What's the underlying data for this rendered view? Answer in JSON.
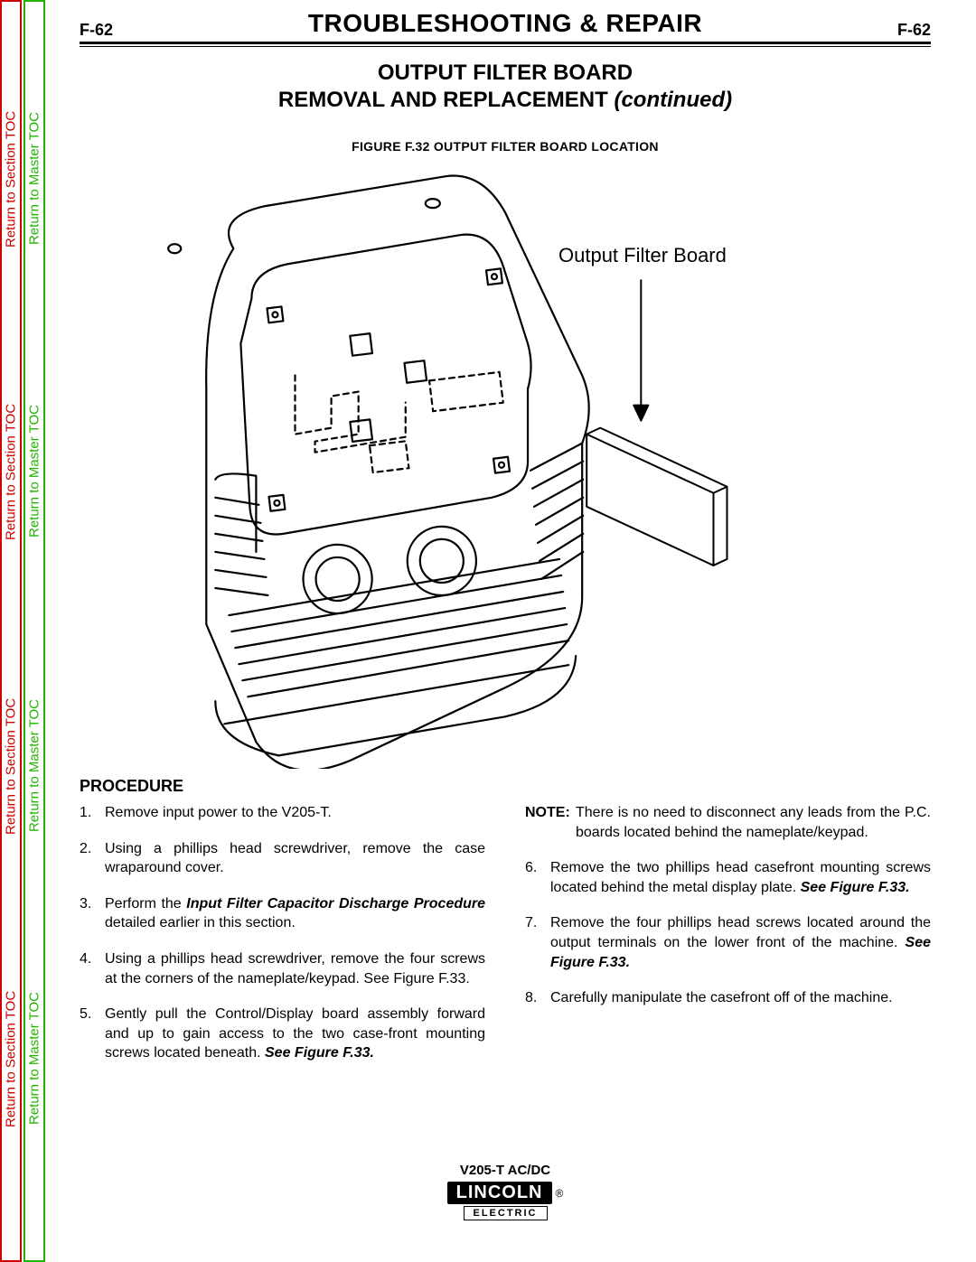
{
  "colors": {
    "red": "#cc0000",
    "green": "#22b400",
    "black": "#000000"
  },
  "tabs": {
    "section_label": "Return to Section TOC",
    "master_label": "Return to Master TOC"
  },
  "header": {
    "page_number": "F-62",
    "section_title": "TROUBLESHOOTING & REPAIR"
  },
  "subtitle": {
    "line1": "OUTPUT FILTER BOARD",
    "line2": "REMOVAL AND REPLACEMENT",
    "continued": "(continued)"
  },
  "figure": {
    "caption": "FIGURE F.32  OUTPUT FILTER BOARD LOCATION",
    "callout": "Output Filter Board"
  },
  "procedure": {
    "heading": "PROCEDURE",
    "left": [
      {
        "n": "1.",
        "text": "Remove input power to the V205-T."
      },
      {
        "n": "2.",
        "text": "Using a phillips head screwdriver, remove the case wraparound cover."
      },
      {
        "n": "3.",
        "html": "Perform the <b><i>Input Filter Capacitor Discharge Procedure</i></b> detailed earlier in this section."
      },
      {
        "n": "4.",
        "text": "Using a phillips head screwdriver, remove the four screws at the corners of the nameplate/keypad.  See Figure F.33."
      },
      {
        "n": "5.",
        "html": "Gently pull the Control/Display board assembly forward and up to gain access to the two case-front mounting screws located beneath.  <b><i>See Figure F.33.</i></b>"
      }
    ],
    "note": {
      "label": "NOTE:",
      "text": "There is no need to disconnect any leads from the P.C. boards located behind the nameplate/keypad."
    },
    "right": [
      {
        "n": "6.",
        "html": "Remove the two phillips head casefront mounting screws located behind the metal display plate.  <b><i>See Figure F.33.</i></b>"
      },
      {
        "n": "7.",
        "html": "Remove the four phillips head screws located around the output terminals on the lower front of the machine.  <b><i>See Figure F.33.</i></b>"
      },
      {
        "n": "8.",
        "text": "Carefully manipulate the casefront off of the machine."
      }
    ]
  },
  "footer": {
    "model": "V205-T AC/DC",
    "brand": "LINCOLN",
    "reg": "®",
    "sub": "ELECTRIC"
  }
}
